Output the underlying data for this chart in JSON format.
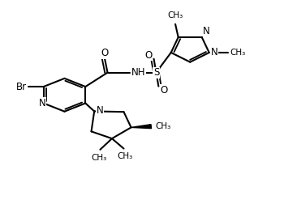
{
  "background_color": "#ffffff",
  "line_color": "#000000",
  "line_width": 1.5,
  "font_size": 8.5,
  "figsize": [
    3.66,
    2.52
  ],
  "dpi": 100,
  "xlim": [
    0,
    1
  ],
  "ylim": [
    0,
    1
  ]
}
